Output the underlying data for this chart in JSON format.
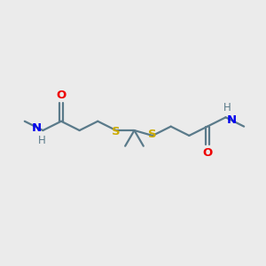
{
  "bg_color": "#ebebeb",
  "bond_color": "#5a7a8a",
  "O_color": "#ee0000",
  "N_color": "#0000ee",
  "S_color": "#ccaa00",
  "line_width": 1.6,
  "font_size": 9.5,
  "small_font_size": 8.5,
  "figsize": [
    3.0,
    3.0
  ],
  "dpi": 100,
  "xlim": [
    0,
    10
  ],
  "ylim": [
    0,
    10
  ]
}
